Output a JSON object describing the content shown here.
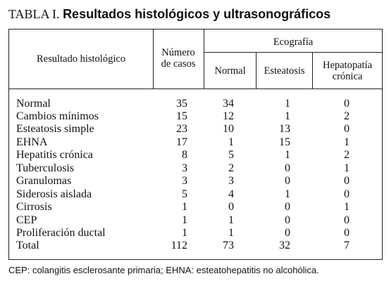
{
  "title": {
    "prefix": "TABLA I.",
    "main": "Resultados histológicos y ultrasonográficos"
  },
  "headers": {
    "resultado": "Resultado histológico",
    "numero": "Número de casos",
    "ecografia": "Ecografía",
    "normal": "Normal",
    "esteatosis": "Esteatosis",
    "hepatopatia": "Hepatopatía crónica"
  },
  "rows": [
    {
      "label": "Normal",
      "casos": "35",
      "normal": "34",
      "esteatosis": "1",
      "hepatopatia": "0"
    },
    {
      "label": "Cambios mínimos",
      "casos": "15",
      "normal": "12",
      "esteatosis": "1",
      "hepatopatia": "2"
    },
    {
      "label": "Esteatosis simple",
      "casos": "23",
      "normal": "10",
      "esteatosis": "13",
      "hepatopatia": "0"
    },
    {
      "label": "EHNA",
      "casos": "17",
      "normal": "1",
      "esteatosis": "15",
      "hepatopatia": "1"
    },
    {
      "label": "Hepatitis crónica",
      "casos": "8",
      "normal": "5",
      "esteatosis": "1",
      "hepatopatia": "2"
    },
    {
      "label": "Tuberculosis",
      "casos": "3",
      "normal": "2",
      "esteatosis": "0",
      "hepatopatia": "1"
    },
    {
      "label": "Granulomas",
      "casos": "3",
      "normal": "3",
      "esteatosis": "0",
      "hepatopatia": "0"
    },
    {
      "label": "Siderosis aislada",
      "casos": "5",
      "normal": "4",
      "esteatosis": "1",
      "hepatopatia": "0"
    },
    {
      "label": "Cirrosis",
      "casos": "1",
      "normal": "0",
      "esteatosis": "0",
      "hepatopatia": "1"
    },
    {
      "label": "CEP",
      "casos": "1",
      "normal": "1",
      "esteatosis": "0",
      "hepatopatia": "0"
    },
    {
      "label": "Proliferación ductal",
      "casos": "1",
      "normal": "1",
      "esteatosis": "0",
      "hepatopatia": "0"
    },
    {
      "label": "Total",
      "casos": "112",
      "normal": "73",
      "esteatosis": "32",
      "hepatopatia": "7"
    }
  ],
  "footnote": "CEP: colangitis esclerosante primaria; EHNA: esteatohepatitis no alcohólica."
}
